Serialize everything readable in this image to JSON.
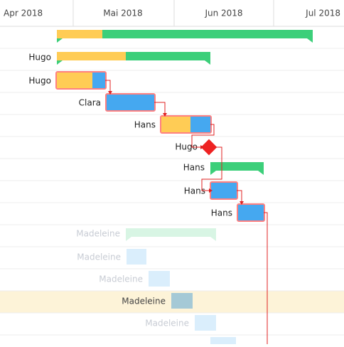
{
  "header": {
    "months": [
      "Apr 2018",
      "Mai 2018",
      "Jun 2018",
      "Jul 2018"
    ]
  },
  "rows": [
    "Hugo",
    "Hugo",
    "Clara",
    "Hans",
    "Hugo",
    "Hans",
    "Hans",
    "Hans",
    "Madeleine",
    "Madeleine",
    "Madeleine",
    "Madeleine",
    "Madeleine"
  ]
}
